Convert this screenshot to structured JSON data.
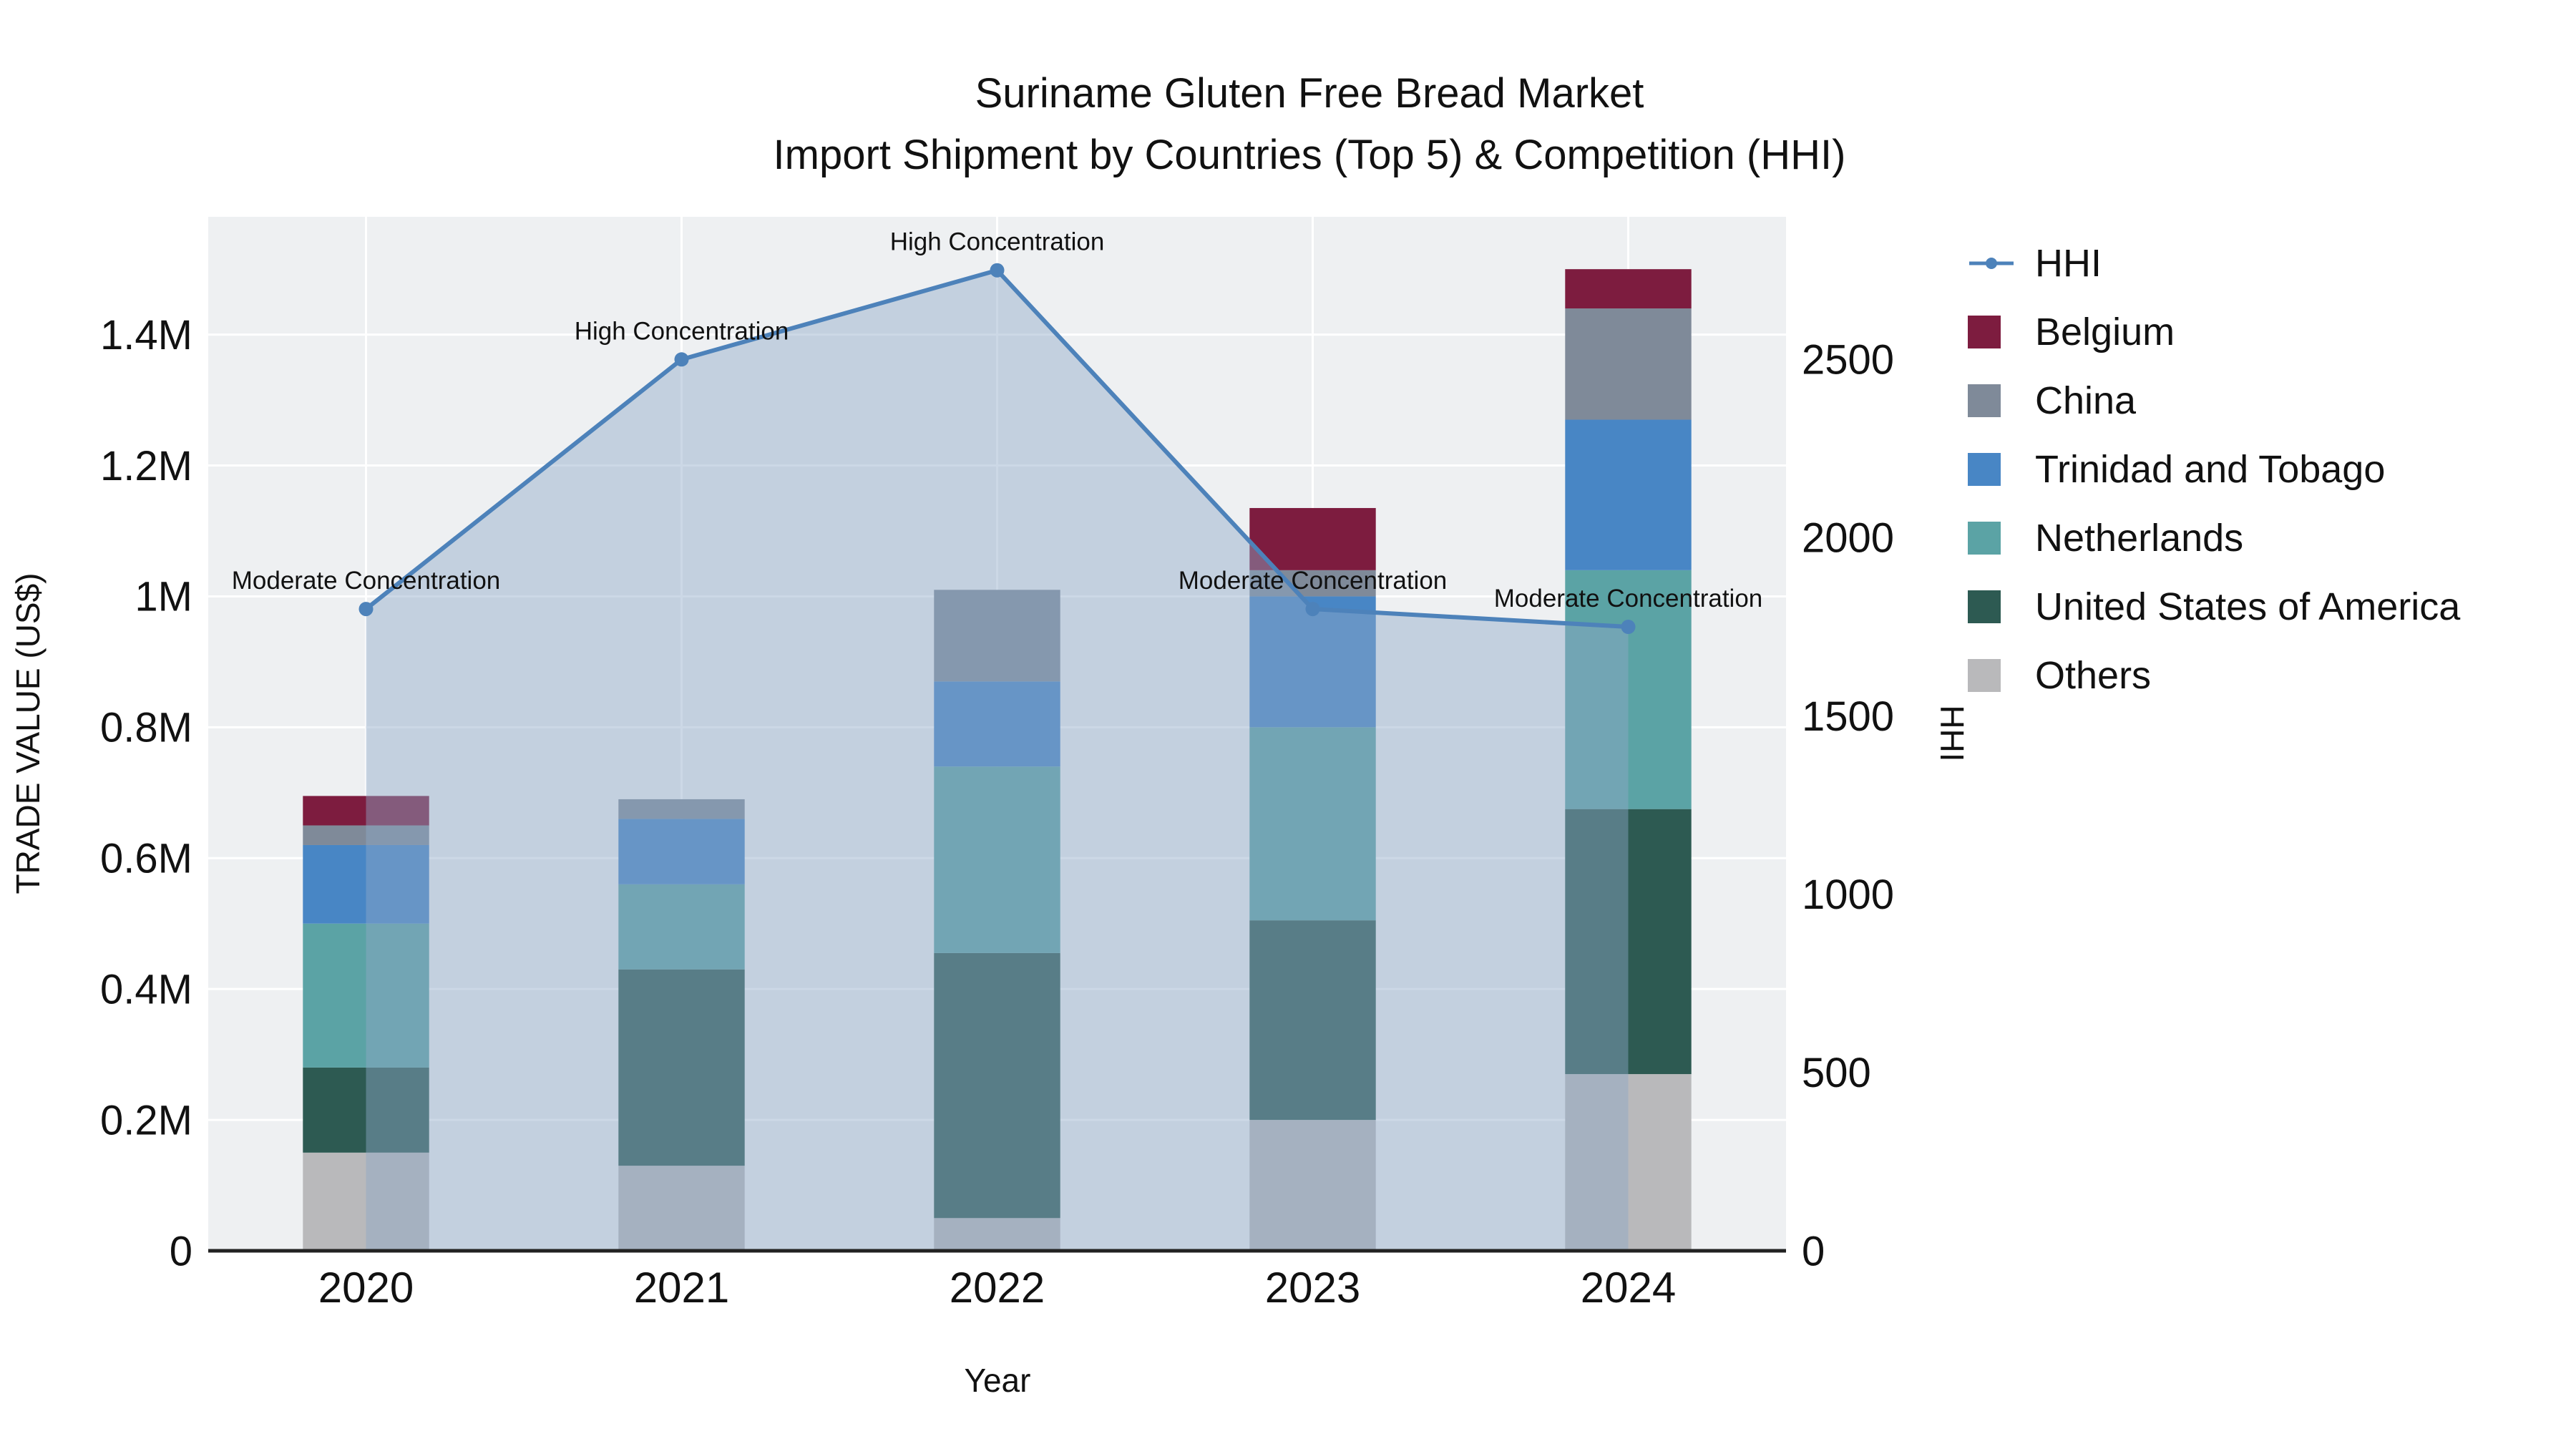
{
  "title": {
    "line1": "Suriname Gluten Free Bread Market",
    "line2": "Import Shipment by Countries (Top 5) & Competition (HHI)"
  },
  "axes": {
    "x_label": "Year",
    "y_left_label": "TRADE VALUE (US$)",
    "y_right_label": "HHI",
    "y_left_ticks": [
      {
        "label": "0",
        "value": 0
      },
      {
        "label": "0.2M",
        "value": 200000
      },
      {
        "label": "0.4M",
        "value": 400000
      },
      {
        "label": "0.6M",
        "value": 600000
      },
      {
        "label": "0.8M",
        "value": 800000
      },
      {
        "label": "1M",
        "value": 1000000
      },
      {
        "label": "1.2M",
        "value": 1200000
      },
      {
        "label": "1.4M",
        "value": 1400000
      }
    ],
    "y_right_ticks": [
      {
        "label": "0",
        "value": 0
      },
      {
        "label": "500",
        "value": 500
      },
      {
        "label": "1000",
        "value": 1000
      },
      {
        "label": "1500",
        "value": 1500
      },
      {
        "label": "2000",
        "value": 2000
      },
      {
        "label": "2500",
        "value": 2500
      }
    ]
  },
  "legend": {
    "items": [
      {
        "label": "HHI",
        "marker": "line",
        "color": "#4d82ba"
      },
      {
        "label": "Belgium",
        "marker": "square",
        "color": "#7d1c3f"
      },
      {
        "label": "China",
        "marker": "square",
        "color": "#7f8a99"
      },
      {
        "label": "Trinidad and Tobago",
        "marker": "square",
        "color": "#4886c5"
      },
      {
        "label": "Netherlands",
        "marker": "square",
        "color": "#5ba3a5"
      },
      {
        "label": "United States of America",
        "marker": "square",
        "color": "#2d5a52"
      },
      {
        "label": "Others",
        "marker": "square",
        "color": "#b9b9bb"
      }
    ]
  },
  "colors": {
    "plot_background": "#eef0f2",
    "gridline": "#ffffff",
    "axis_line": "#222222",
    "hhi_line": "#4d82ba",
    "hhi_area_fill": "#8fa8c8"
  },
  "chart_data": {
    "type": "bar",
    "subtype": "stacked-bar-with-line-overlay",
    "title": "Suriname Gluten Free Bread Market Import Shipment by Countries (Top 5) & Competition (HHI)",
    "xlabel": "Year",
    "ylabel_left": "TRADE VALUE (US$)",
    "ylabel_right": "HHI",
    "categories": [
      "2020",
      "2021",
      "2022",
      "2023",
      "2024"
    ],
    "stack_order_bottom_to_top": [
      "Others",
      "United States of America",
      "Netherlands",
      "Trinidad and Tobago",
      "China",
      "Belgium"
    ],
    "series": [
      {
        "name": "Others",
        "color": "#b9b9bb",
        "values": [
          150000,
          130000,
          50000,
          200000,
          270000
        ]
      },
      {
        "name": "United States of America",
        "color": "#2d5a52",
        "values": [
          130000,
          300000,
          405000,
          305000,
          405000
        ]
      },
      {
        "name": "Netherlands",
        "color": "#5ba3a5",
        "values": [
          220000,
          130000,
          285000,
          295000,
          365000
        ]
      },
      {
        "name": "Trinidad and Tobago",
        "color": "#4886c5",
        "values": [
          120000,
          100000,
          130000,
          200000,
          230000
        ]
      },
      {
        "name": "China",
        "color": "#7f8a99",
        "values": [
          30000,
          30000,
          140000,
          40000,
          170000
        ]
      },
      {
        "name": "Belgium",
        "color": "#7d1c3f",
        "values": [
          45000,
          0,
          0,
          95000,
          60000
        ]
      }
    ],
    "bar_totals": [
      695000,
      690000,
      1010000,
      1135000,
      1500000
    ],
    "line_series": {
      "name": "HHI",
      "axis": "right",
      "color": "#4d82ba",
      "values": [
        1800,
        2500,
        2750,
        1800,
        1750
      ],
      "area_fill_color": "#8fa8c8",
      "area_fill_opacity": 0.45
    },
    "annotations": [
      {
        "x": "2020",
        "text": "Moderate Concentration"
      },
      {
        "x": "2021",
        "text": "High Concentration"
      },
      {
        "x": "2022",
        "text": "High Concentration"
      },
      {
        "x": "2023",
        "text": "Moderate Concentration"
      },
      {
        "x": "2024",
        "text": "Moderate Concentration"
      }
    ],
    "ylim_left": [
      0,
      1580000
    ],
    "ylim_right": [
      0,
      2900
    ],
    "grid": true,
    "legend_position": "right"
  }
}
